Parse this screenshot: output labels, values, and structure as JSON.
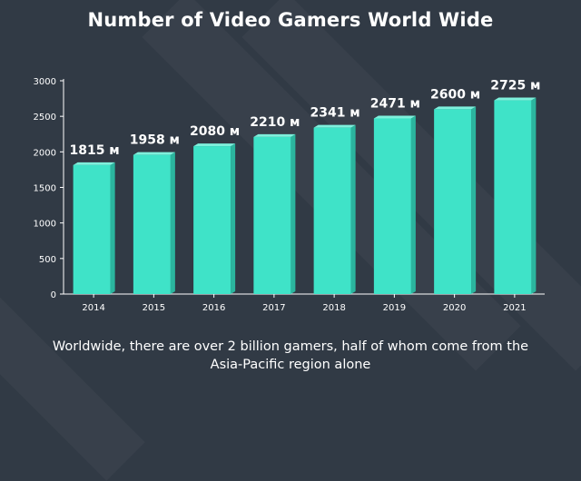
{
  "title": "Number of Video Gamers World Wide",
  "caption": "Worldwide, there are over 2 billion gamers, half of whom come from the Asia-Pacific region alone",
  "colors": {
    "background": "#313a45",
    "bar_front": "#3fe3c8",
    "bar_side": "#2bb59e",
    "bar_top": "#7ef0dc",
    "axis": "#ffffff",
    "text": "#ffffff"
  },
  "chart_data": {
    "type": "bar",
    "title": "Number of Video Gamers World Wide",
    "categories": [
      "2014",
      "2015",
      "2016",
      "2017",
      "2018",
      "2019",
      "2020",
      "2021"
    ],
    "values": [
      1815,
      1958,
      2080,
      2210,
      2341,
      2471,
      2600,
      2725
    ],
    "data_labels": [
      "1815 м",
      "1958 м",
      "2080 м",
      "2210 м",
      "2341 м",
      "2471 м",
      "2600 м",
      "2725 м"
    ],
    "yticks": [
      "0",
      "500",
      "1000",
      "1500",
      "2000",
      "2500",
      "3000"
    ],
    "ylim": [
      0,
      3000
    ],
    "xlabel": "",
    "ylabel": "",
    "grid": false,
    "legend": "none"
  }
}
